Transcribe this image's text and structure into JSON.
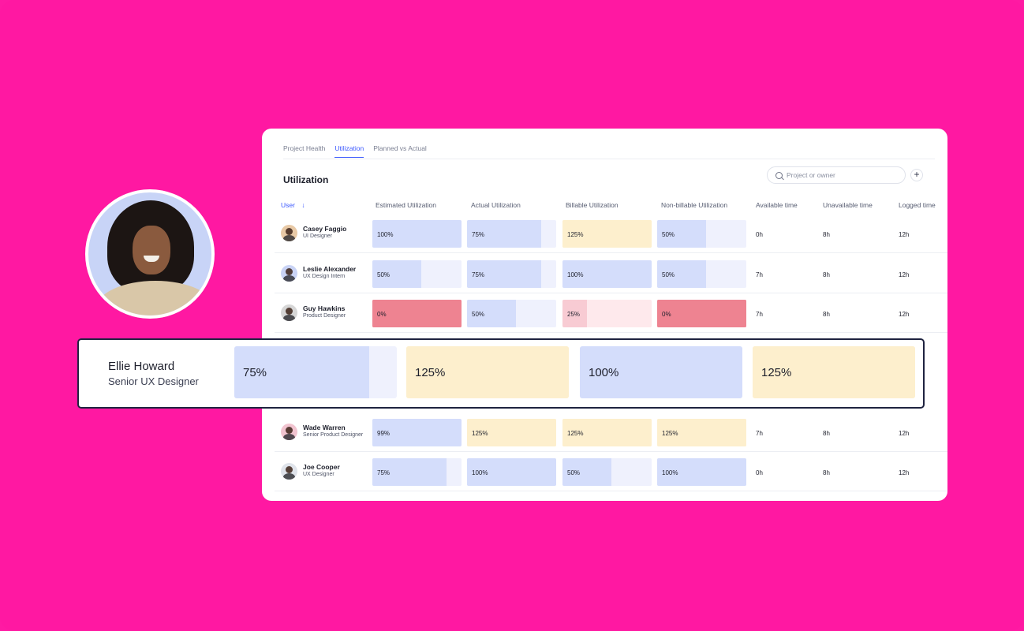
{
  "tabs": [
    {
      "label": "Project Health",
      "active": false
    },
    {
      "label": "Utilization",
      "active": true
    },
    {
      "label": "Planned vs Actual",
      "active": false
    }
  ],
  "title": "Utilization",
  "search": {
    "placeholder": "Project or owner",
    "add_label": "+"
  },
  "columns": {
    "user": "User",
    "sort_arrow": "↓",
    "estimated": "Estimated Utilization",
    "actual": "Actual Utilization",
    "billable": "Billable Utilization",
    "nonbillable": "Non-billable Utilization",
    "available": "Available time",
    "unavailable": "Unavailable time",
    "logged": "Logged time"
  },
  "rows": [
    {
      "name": "Casey Faggio",
      "role": "UI Designer",
      "avatar_color": "#e8c9a6",
      "cells": [
        {
          "label": "100%",
          "fill": 1.0,
          "color": "blue"
        },
        {
          "label": "75%",
          "fill": 0.83,
          "color": "blue"
        },
        {
          "label": "125%",
          "fill": 1.0,
          "color": "yellow"
        },
        {
          "label": "50%",
          "fill": 0.55,
          "color": "blue"
        }
      ],
      "available": "0h",
      "unavailable": "8h",
      "logged": "12h"
    },
    {
      "name": "Leslie Alexander",
      "role": "UX Design Intern",
      "avatar_color": "#c9d3f5",
      "cells": [
        {
          "label": "50%",
          "fill": 0.55,
          "color": "blue"
        },
        {
          "label": "75%",
          "fill": 0.83,
          "color": "blue"
        },
        {
          "label": "100%",
          "fill": 1.0,
          "color": "blue"
        },
        {
          "label": "50%",
          "fill": 0.55,
          "color": "blue"
        }
      ],
      "available": "7h",
      "unavailable": "8h",
      "logged": "12h"
    },
    {
      "name": "Guy Hawkins",
      "role": "Product Designer",
      "avatar_color": "#d6d6d6",
      "cells": [
        {
          "label": "0%",
          "fill": 1.0,
          "color": "red"
        },
        {
          "label": "50%",
          "fill": 0.55,
          "color": "blue"
        },
        {
          "label": "25%",
          "fill": 0.27,
          "color": "pink"
        },
        {
          "label": "0%",
          "fill": 1.0,
          "color": "red"
        }
      ],
      "available": "7h",
      "unavailable": "8h",
      "logged": "12h"
    },
    {
      "name": "Wade Warren",
      "role": "Senior Product Designer",
      "avatar_color": "#f1c3cf",
      "cells": [
        {
          "label": "99%",
          "fill": 1.0,
          "color": "blue"
        },
        {
          "label": "125%",
          "fill": 1.0,
          "color": "yellow"
        },
        {
          "label": "125%",
          "fill": 1.0,
          "color": "yellow"
        },
        {
          "label": "125%",
          "fill": 1.0,
          "color": "yellow"
        }
      ],
      "available": "7h",
      "unavailable": "8h",
      "logged": "12h"
    },
    {
      "name": "Joe Cooper",
      "role": "UX Designer",
      "avatar_color": "#dfe3ea",
      "cells": [
        {
          "label": "75%",
          "fill": 0.83,
          "color": "blue"
        },
        {
          "label": "100%",
          "fill": 1.0,
          "color": "blue"
        },
        {
          "label": "50%",
          "fill": 0.55,
          "color": "blue"
        },
        {
          "label": "100%",
          "fill": 1.0,
          "color": "blue"
        }
      ],
      "available": "0h",
      "unavailable": "8h",
      "logged": "12h"
    }
  ],
  "highlight": {
    "name": "Ellie Howard",
    "role": "Senior UX Designer",
    "cells": [
      {
        "label": "75%",
        "fill": 0.83,
        "color": "blue"
      },
      {
        "label": "125%",
        "fill": 1.0,
        "color": "yellow"
      },
      {
        "label": "100%",
        "fill": 1.0,
        "color": "blue"
      },
      {
        "label": "125%",
        "fill": 1.0,
        "color": "yellow"
      }
    ]
  },
  "colors": {
    "background": "#ff1aa3",
    "accent": "#3d5afe",
    "bar_blue": "#d4ddfb",
    "bar_yellow": "#fdefcd",
    "bar_red": "#ee8391",
    "bar_pink": "#f8cbd3"
  }
}
